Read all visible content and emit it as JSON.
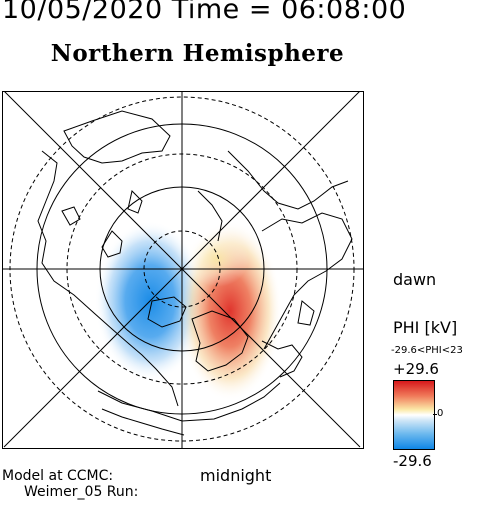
{
  "header": {
    "date_time": "10/05/2020 Time = 06:08:00",
    "hemisphere": "Northern Hemisphere"
  },
  "map": {
    "labels": {
      "dawn": "dawn",
      "midnight": "midnight"
    },
    "potential_min_kV": -29.6,
    "potential_max_kV": 29.6
  },
  "legend": {
    "title": "PHI [kV]",
    "range_text": "-29.6<PHI<23",
    "max_label": "+29.6",
    "zero_label": "0",
    "min_label": "-29.6",
    "colors": {
      "max": "#d7191c",
      "mid": "#ffffff",
      "min": "#0f86e6"
    }
  },
  "footer": {
    "model_label": "Model at CCMC:",
    "run_label": "Weimer_05 Run:"
  }
}
